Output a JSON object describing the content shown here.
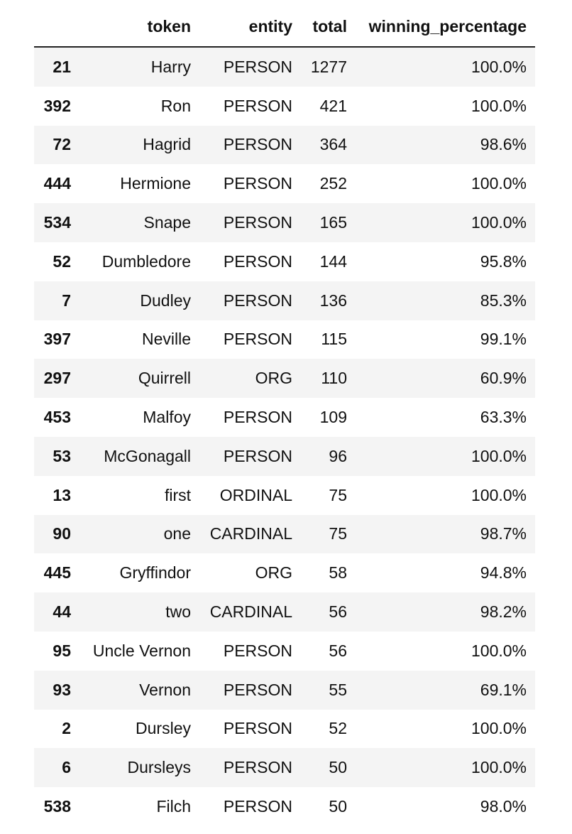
{
  "table": {
    "columns": [
      "",
      "token",
      "entity",
      "total",
      "winning_percentage"
    ],
    "rows": [
      {
        "index": "21",
        "token": "Harry",
        "entity": "PERSON",
        "total": "1277",
        "winning_percentage": "100.0%"
      },
      {
        "index": "392",
        "token": "Ron",
        "entity": "PERSON",
        "total": "421",
        "winning_percentage": "100.0%"
      },
      {
        "index": "72",
        "token": "Hagrid",
        "entity": "PERSON",
        "total": "364",
        "winning_percentage": "98.6%"
      },
      {
        "index": "444",
        "token": "Hermione",
        "entity": "PERSON",
        "total": "252",
        "winning_percentage": "100.0%"
      },
      {
        "index": "534",
        "token": "Snape",
        "entity": "PERSON",
        "total": "165",
        "winning_percentage": "100.0%"
      },
      {
        "index": "52",
        "token": "Dumbledore",
        "entity": "PERSON",
        "total": "144",
        "winning_percentage": "95.8%"
      },
      {
        "index": "7",
        "token": "Dudley",
        "entity": "PERSON",
        "total": "136",
        "winning_percentage": "85.3%"
      },
      {
        "index": "397",
        "token": "Neville",
        "entity": "PERSON",
        "total": "115",
        "winning_percentage": "99.1%"
      },
      {
        "index": "297",
        "token": "Quirrell",
        "entity": "ORG",
        "total": "110",
        "winning_percentage": "60.9%"
      },
      {
        "index": "453",
        "token": "Malfoy",
        "entity": "PERSON",
        "total": "109",
        "winning_percentage": "63.3%"
      },
      {
        "index": "53",
        "token": "McGonagall",
        "entity": "PERSON",
        "total": "96",
        "winning_percentage": "100.0%"
      },
      {
        "index": "13",
        "token": "first",
        "entity": "ORDINAL",
        "total": "75",
        "winning_percentage": "100.0%"
      },
      {
        "index": "90",
        "token": "one",
        "entity": "CARDINAL",
        "total": "75",
        "winning_percentage": "98.7%"
      },
      {
        "index": "445",
        "token": "Gryffindor",
        "entity": "ORG",
        "total": "58",
        "winning_percentage": "94.8%"
      },
      {
        "index": "44",
        "token": "two",
        "entity": "CARDINAL",
        "total": "56",
        "winning_percentage": "98.2%"
      },
      {
        "index": "95",
        "token": "Uncle Vernon",
        "entity": "PERSON",
        "total": "56",
        "winning_percentage": "100.0%"
      },
      {
        "index": "93",
        "token": "Vernon",
        "entity": "PERSON",
        "total": "55",
        "winning_percentage": "69.1%"
      },
      {
        "index": "2",
        "token": "Dursley",
        "entity": "PERSON",
        "total": "52",
        "winning_percentage": "100.0%"
      },
      {
        "index": "6",
        "token": "Dursleys",
        "entity": "PERSON",
        "total": "50",
        "winning_percentage": "100.0%"
      },
      {
        "index": "538",
        "token": "Filch",
        "entity": "PERSON",
        "total": "50",
        "winning_percentage": "98.0%"
      }
    ]
  },
  "colors": {
    "stripe": "#f4f4f4",
    "text": "#111111",
    "header_rule": "#222222"
  }
}
